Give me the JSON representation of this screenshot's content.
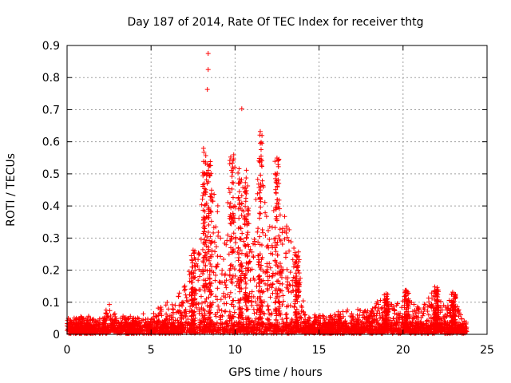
{
  "chart_data": {
    "type": "scatter",
    "title": "Day 187 of 2014, Rate Of TEC Index for receiver thtg",
    "xlabel": "GPS time / hours",
    "ylabel": "ROTI / TECUs",
    "xlim": [
      0,
      25
    ],
    "ylim": [
      0,
      0.9
    ],
    "xticks": [
      "0",
      "5",
      "10",
      "15",
      "20",
      "25"
    ],
    "yticks": [
      "0",
      "0.1",
      "0.2",
      "0.3",
      "0.4",
      "0.5",
      "0.6",
      "0.7",
      "0.8",
      "0.9"
    ],
    "grid": true,
    "marker": "+",
    "color": "#ff0000",
    "series": [
      {
        "name": "ROTI",
        "x": [
          8.4,
          8.4,
          8.35,
          10.4,
          11.5,
          11.5,
          11.55,
          8.2,
          8.25,
          8.6,
          9.7,
          9.8,
          10.3,
          10.6,
          10.7,
          12.5,
          12.5,
          12.55,
          11.5,
          11.6,
          12.6,
          10.2,
          10.8,
          8.3,
          9.6,
          9.9,
          11.4,
          13.7,
          13.6,
          7.4,
          7.5,
          7.9,
          8.1,
          8.9,
          9.3,
          10.1,
          10.9,
          11.2,
          12.1,
          12.3,
          12.8,
          13.1,
          13.3,
          13.8,
          18.9,
          19.1,
          20.3,
          20.4,
          21.9,
          22.1,
          22.2,
          22.9,
          23.0,
          2.4,
          2.5,
          5.6,
          6.0,
          6.6,
          14.2,
          15.3,
          16.2,
          17.5,
          17.6,
          18.5,
          19.8,
          21.0,
          21.5,
          23.5
        ]
      }
    ]
  }
}
